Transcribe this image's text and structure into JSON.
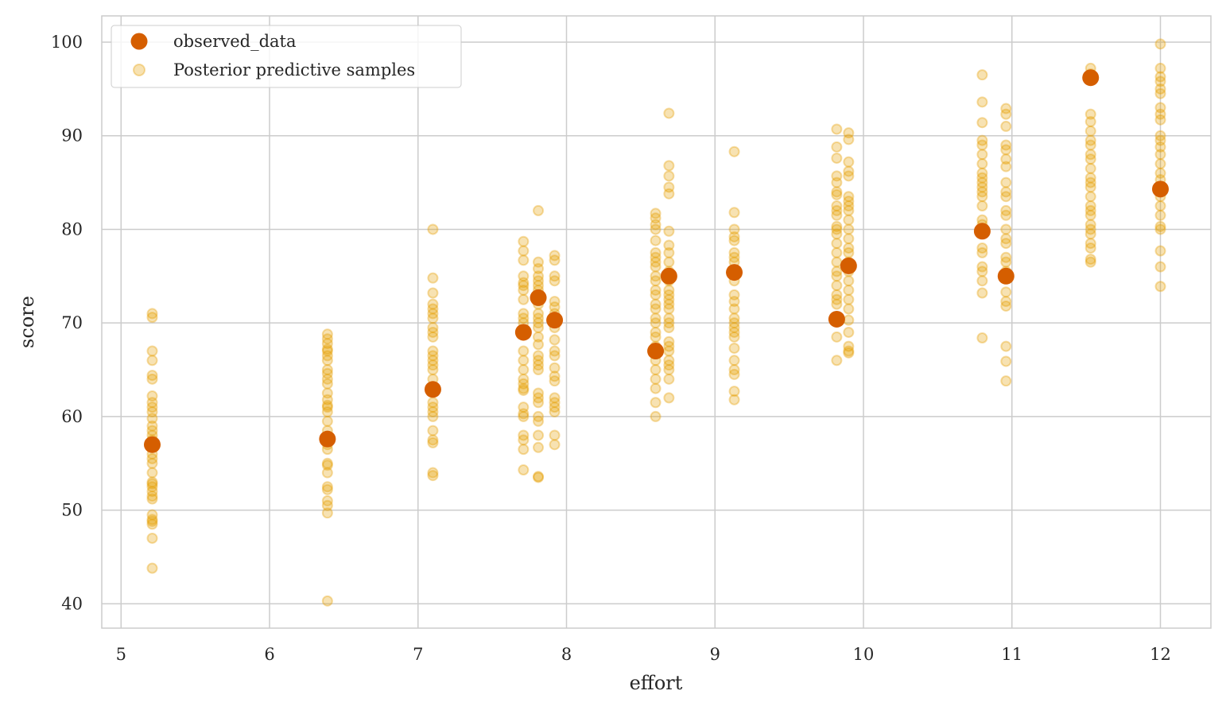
{
  "chart_data": {
    "type": "scatter",
    "title": "",
    "xlabel": "effort",
    "ylabel": "score",
    "xlim": [
      4.87,
      12.34
    ],
    "ylim": [
      37.4,
      102.8
    ],
    "xticks": [
      5,
      6,
      7,
      8,
      9,
      10,
      11,
      12
    ],
    "yticks": [
      40,
      50,
      60,
      70,
      80,
      90,
      100
    ],
    "grid": true,
    "legend_position": "top-left",
    "colors": {
      "observed": "#D55E00",
      "samples": "#E69F00",
      "grid": "#cccccc"
    },
    "series": [
      {
        "name": "observed_data",
        "points": [
          [
            5.21,
            57.0
          ],
          [
            6.39,
            57.6
          ],
          [
            7.1,
            62.9
          ],
          [
            7.71,
            69.0
          ],
          [
            7.81,
            72.7
          ],
          [
            7.92,
            70.3
          ],
          [
            8.6,
            67.0
          ],
          [
            8.69,
            75.0
          ],
          [
            9.13,
            75.4
          ],
          [
            9.82,
            70.4
          ],
          [
            9.9,
            76.1
          ],
          [
            10.8,
            79.8
          ],
          [
            10.96,
            75.0
          ],
          [
            11.53,
            96.2
          ],
          [
            12.0,
            84.3
          ]
        ]
      },
      {
        "name": "Posterior predictive samples",
        "groups": [
          {
            "x": 5.21,
            "y": [
              71,
              70.6,
              67,
              66,
              64.4,
              64,
              62.2,
              61.5,
              61,
              60.5,
              59.8,
              59,
              58.5,
              58,
              57.5,
              56,
              55.5,
              55,
              54,
              53,
              52.8,
              52.5,
              52,
              51.5,
              51.2,
              49.5,
              49,
              48.8,
              48.5,
              47,
              43.8
            ]
          },
          {
            "x": 6.39,
            "y": [
              68.8,
              68.3,
              67.8,
              67.2,
              67,
              66.5,
              66,
              65,
              64.6,
              64,
              63.5,
              62.5,
              61.8,
              61.2,
              61,
              60.5,
              59.5,
              58.5,
              57.5,
              57,
              56.5,
              55,
              54.8,
              54,
              52.5,
              52.2,
              51,
              50.5,
              49.7,
              40.3
            ]
          },
          {
            "x": 7.1,
            "y": [
              80,
              74.8,
              73.2,
              72,
              71.5,
              71,
              70.5,
              69.5,
              69,
              68.5,
              67,
              66.5,
              66,
              65.5,
              65,
              64,
              63,
              61.5,
              61,
              60.5,
              60,
              58.5,
              57.5,
              57.2,
              54,
              53.7
            ]
          },
          {
            "x": 7.71,
            "y": [
              78.7,
              77.7,
              76.7,
              75,
              74.3,
              74,
              73.5,
              72.5,
              71,
              70.5,
              70,
              68.7,
              67,
              66,
              65,
              64,
              63.5,
              63,
              62.8,
              61,
              60.3,
              60,
              58,
              57.5,
              56.5,
              54.3
            ]
          },
          {
            "x": 7.81,
            "y": [
              82,
              76.5,
              75.8,
              75,
              74.5,
              74,
              73.5,
              72,
              71,
              70.5,
              70,
              69.5,
              68.5,
              67.7,
              66.5,
              66,
              65.5,
              65,
              62.5,
              62,
              61.5,
              60,
              59.5,
              58,
              56.7,
              53.6,
              53.5
            ]
          },
          {
            "x": 7.92,
            "y": [
              77.2,
              76.7,
              75,
              74.5,
              72.3,
              71.7,
              71,
              70.5,
              69.5,
              68.2,
              67,
              66.5,
              65.2,
              64.3,
              63.8,
              62,
              61.5,
              61,
              60.5,
              58,
              57
            ]
          },
          {
            "x": 8.6,
            "y": [
              81.7,
              81.2,
              80.5,
              80,
              78.8,
              77.5,
              77,
              76.5,
              76,
              75,
              74.5,
              73.5,
              73,
              72,
              71.5,
              70.5,
              70,
              69,
              68.5,
              67.5,
              66,
              65,
              64,
              63,
              61.5,
              60
            ]
          },
          {
            "x": 8.69,
            "y": [
              92.4,
              86.8,
              85.7,
              84.5,
              83.8,
              79.8,
              78.3,
              77.5,
              76.5,
              75.5,
              74.5,
              73.5,
              73,
              72.5,
              72,
              71.5,
              70.5,
              70,
              69.5,
              68,
              67.5,
              67,
              66,
              65.5,
              65,
              64,
              62
            ]
          },
          {
            "x": 9.13,
            "y": [
              88.3,
              81.8,
              80,
              79.2,
              78.8,
              77.5,
              77,
              76.5,
              75.5,
              74.5,
              73,
              72.3,
              71.5,
              70.5,
              70,
              69.5,
              69,
              68.5,
              67.3,
              66,
              65,
              64.5,
              62.7,
              61.8
            ]
          },
          {
            "x": 9.82,
            "y": [
              90.7,
              88.8,
              87.6,
              85.7,
              85,
              84,
              83.7,
              82.5,
              82,
              81.5,
              80.3,
              80,
              79.5,
              78.5,
              77.5,
              76.5,
              75.5,
              75,
              74,
              73,
              72.5,
              72,
              70.5,
              68.5,
              66
            ]
          },
          {
            "x": 9.9,
            "y": [
              90.3,
              89.6,
              87.2,
              86.2,
              85.7,
              83.5,
              83,
              82.5,
              82,
              81,
              80,
              79,
              78,
              77.5,
              76.5,
              75.5,
              74.5,
              73.5,
              72.5,
              71.5,
              70.3,
              69,
              67.5,
              67,
              66.8
            ]
          },
          {
            "x": 10.8,
            "y": [
              96.5,
              93.6,
              91.4,
              89.5,
              89,
              88,
              87,
              86,
              85.5,
              85,
              84.5,
              84,
              83.5,
              82.5,
              81,
              80.5,
              78,
              77.5,
              76,
              75.5,
              74.5,
              73.2,
              68.4
            ]
          },
          {
            "x": 10.96,
            "y": [
              92.9,
              92.3,
              91,
              89,
              88.5,
              87.5,
              86.7,
              85,
              84,
              83.5,
              82,
              81.5,
              80,
              79,
              78.5,
              77,
              76.5,
              75.5,
              73.3,
              72.3,
              71.8,
              67.5,
              65.9,
              63.8
            ]
          },
          {
            "x": 11.53,
            "y": [
              97.2,
              96.6,
              92.3,
              91.5,
              90.5,
              89.5,
              89,
              88,
              87.5,
              86.5,
              85.5,
              85,
              84.5,
              83.5,
              82.5,
              82,
              81.5,
              80.5,
              80,
              79.5,
              78.5,
              78,
              76.8,
              76.5
            ]
          },
          {
            "x": 12.0,
            "y": [
              99.8,
              97.2,
              96.3,
              95.8,
              95,
              94.5,
              93,
              92.3,
              91.7,
              90,
              89.5,
              88.8,
              88,
              87,
              86,
              85.3,
              84.5,
              83.5,
              82.5,
              81.5,
              80.3,
              80,
              77.7,
              76,
              73.9
            ]
          }
        ]
      }
    ],
    "legend": [
      "observed_data",
      "Posterior predictive samples"
    ]
  }
}
